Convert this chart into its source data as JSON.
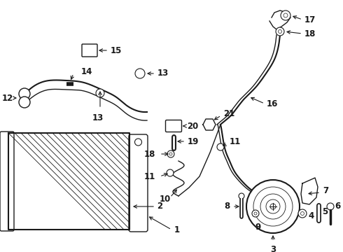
{
  "background_color": "#ffffff",
  "line_color": "#1a1a1a",
  "font_size": 8.5,
  "fig_width": 4.9,
  "fig_height": 3.6,
  "dpi": 100
}
